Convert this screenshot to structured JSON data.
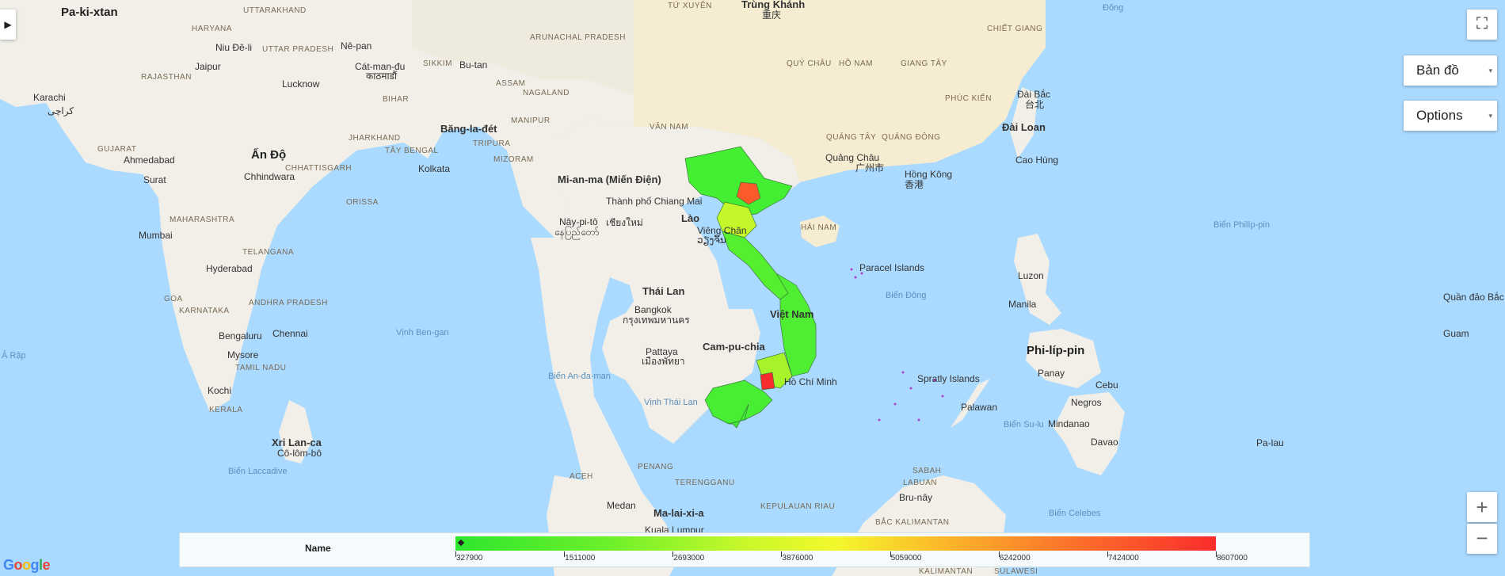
{
  "map": {
    "countries": [
      "Pa-ki-xtan",
      "Ấn Độ",
      "Mi-an-ma (Miến Điện)",
      "Lào",
      "Thái Lan",
      "Cam-pu-chia",
      "Việt Nam",
      "Phi-líp-pin",
      "Xri Lan-ca",
      "Ma-lai-xi-a",
      "Đài Loan",
      "Bu-tan",
      "Nê-pan",
      "Băng-la-đét"
    ],
    "cities": [
      "Karachi",
      "Niu Đê-li",
      "Jaipur",
      "Lucknow",
      "Cát-man-đu",
      "Ahmedabad",
      "Surat",
      "Mumbai",
      "Hyderabad",
      "Bengaluru",
      "Chennai",
      "Kolkata",
      "Bangkok",
      "Pattaya",
      "Trùng Khánh",
      "Quảng Châu",
      "Hồng Kông",
      "Đài Bắc",
      "Cao Hùng",
      "Manila",
      "Cebu",
      "Davao",
      "Medan",
      "Kuala Lumpur",
      "Cô-lôm-bô",
      "Mysore",
      "Kochi",
      "Chhindwara",
      "Nây-pi-tô",
      "Thành phố Chiang Mai",
      "Viêng Chăn",
      "Hồ Chí Minh",
      "Luzon",
      "Panay",
      "Negros",
      "Mindanao",
      "Palawan",
      "Bru-nây",
      "Guam",
      "Pa-lau"
    ],
    "regions": [
      "HARYANA",
      "UTTARAKHAND",
      "UTTAR PRADESH",
      "RAJASTHAN",
      "BIHAR",
      "SIKKIM",
      "ASSAM",
      "NAGALAND",
      "MANIPUR",
      "JHARKHAND",
      "TÂY BENGAL",
      "TRIPURA",
      "MIZORAM",
      "GUJARAT",
      "CHHATTISGARH",
      "ORISSA",
      "MAHARASHTRA",
      "TELANGANA",
      "GOA",
      "KARNATAKA",
      "ANDHRA PRADESH",
      "TAMIL NADU",
      "KERALA",
      "ARUNACHAL PRADESH",
      "VÂN NAM",
      "QUÝ CHÂU",
      "HỒ NAM",
      "GIANG TÂY",
      "PHÚC KIẾN",
      "CHIẾT GIANG",
      "QUẢNG TÂY",
      "QUẢNG ĐÔNG",
      "HẢI NAM",
      "TỨ XUYÊN",
      "ACEH",
      "PENANG",
      "TERENGGANU",
      "SABAH",
      "LABUAN",
      "KEPULAUAN RIAU",
      "BẮC KALIMANTAN",
      "KALIMANTAN",
      "SULAWESI"
    ],
    "seas": [
      "Vịnh Ben-gan",
      "Biển An-đa-man",
      "Vịnh Thái Lan",
      "Biển Đông",
      "Biển Philíp-pin",
      "Biển Su-lu",
      "Biển Celebes",
      "Biển Laccadive",
      "Ả Rập",
      "Đông"
    ],
    "islands": [
      "Paracel Islands",
      "Spratly Islands",
      "Quần đảo Bắc Ma-ri-a-na"
    ],
    "script_labels": [
      "کراچی",
      "重庆",
      "广州市",
      "香港",
      "台北",
      "กรุงเทพมหานคร",
      "เมืองพัทยา",
      "เชียงใหม่",
      "နေပြည်တော်",
      "ວຽງຈັນ",
      "काठमाडौं"
    ]
  },
  "controls": {
    "expand": "▶",
    "fullscreen": "⛶",
    "map_type": "Bản đồ",
    "options": "Options",
    "zoom_in": "+",
    "zoom_out": "−",
    "dropdown_arrow": "▾"
  },
  "legend": {
    "name": "Name",
    "min": 327900,
    "max": 8607000,
    "ticks": [
      "327900",
      "1511000",
      "2693000",
      "3876000",
      "5059000",
      "6242000",
      "7424000",
      "8607000"
    ],
    "colors": {
      "low": "#2ee62e",
      "mid": "#f3f82c",
      "high": "#fb2c2c"
    }
  },
  "branding": {
    "logo": "Google"
  }
}
